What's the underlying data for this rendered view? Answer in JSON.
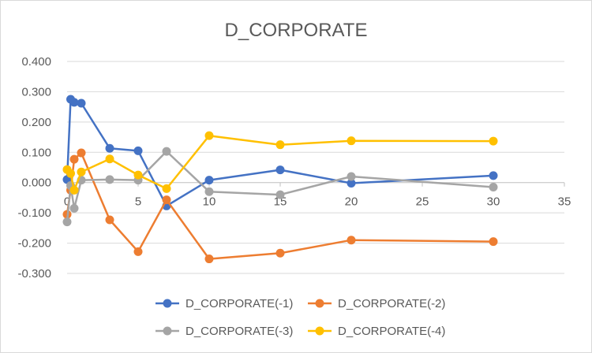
{
  "chart_data": {
    "type": "scatter-line",
    "title": "D_CORPORATE",
    "xlabel": "",
    "ylabel": "",
    "xlim": [
      0,
      35
    ],
    "ylim": [
      -0.3,
      0.4
    ],
    "xticks": [
      0,
      5,
      10,
      15,
      20,
      25,
      30,
      35
    ],
    "xtick_labels": [
      "0",
      "5",
      "10",
      "15",
      "20",
      "25",
      "30",
      "35"
    ],
    "yticks": [
      -0.3,
      -0.2,
      -0.1,
      0,
      0.1,
      0.2,
      0.3,
      0.4
    ],
    "ytick_labels": [
      "-0.300",
      "-0.200",
      "-0.100",
      "0.000",
      "0.100",
      "0.200",
      "0.300",
      "0.400"
    ],
    "grid": "horizontal",
    "legend_position": "bottom",
    "series": [
      {
        "name": "D_CORPORATE(-1)",
        "color": "#4472c4",
        "x": [
          0,
          0.25,
          0.5,
          1,
          3,
          5,
          7,
          10,
          15,
          20,
          30
        ],
        "y": [
          0.01,
          0.275,
          0.265,
          0.262,
          0.113,
          0.105,
          -0.077,
          0.008,
          0.042,
          -0.002,
          0.023
        ]
      },
      {
        "name": "D_CORPORATE(-2)",
        "color": "#ed7d31",
        "x": [
          0,
          0.25,
          0.5,
          1,
          3,
          5,
          7,
          10,
          15,
          20,
          30
        ],
        "y": [
          -0.105,
          -0.025,
          0.077,
          0.098,
          -0.123,
          -0.228,
          -0.057,
          -0.252,
          -0.233,
          -0.19,
          -0.195
        ]
      },
      {
        "name": "D_CORPORATE(-3)",
        "color": "#a5a5a5",
        "x": [
          0,
          0.25,
          0.5,
          1,
          3,
          5,
          7,
          10,
          15,
          20,
          30
        ],
        "y": [
          -0.13,
          -0.01,
          -0.085,
          0.008,
          0.01,
          0.008,
          0.103,
          -0.03,
          -0.04,
          0.02,
          -0.015
        ]
      },
      {
        "name": "D_CORPORATE(-4)",
        "color": "#ffc000",
        "x": [
          0,
          0.25,
          0.5,
          1,
          3,
          5,
          7,
          10,
          15,
          20,
          30
        ],
        "y": [
          0.043,
          0.03,
          -0.025,
          0.035,
          0.078,
          0.025,
          -0.02,
          0.155,
          0.125,
          0.138,
          0.137
        ]
      }
    ]
  }
}
